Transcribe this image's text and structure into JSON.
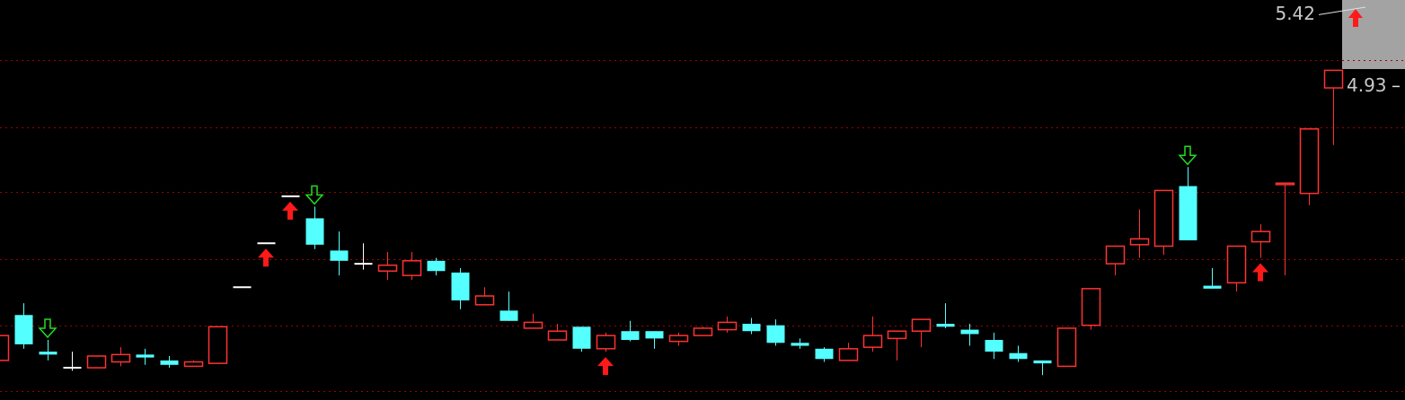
{
  "chart_data": {
    "type": "candlestick",
    "ylim": [
      2.79,
      5.52
    ],
    "gridlines": [
      5.11,
      4.65,
      4.21,
      3.75,
      3.3,
      2.85
    ],
    "grid": true,
    "up_color": "#ff3232",
    "down_color": "#54ffff",
    "flat_color": "#ffffff",
    "open": [
      3.06,
      3.37,
      3.12,
      3.01,
      3.01,
      3.05,
      3.1,
      3.06,
      3.02,
      3.04,
      3.56,
      3.86,
      4.18,
      4.03,
      3.81,
      3.72,
      3.67,
      3.64,
      3.74,
      3.66,
      3.44,
      3.4,
      3.28,
      3.2,
      3.29,
      3.14,
      3.26,
      3.26,
      3.19,
      3.23,
      3.27,
      3.31,
      3.3,
      3.18,
      3.14,
      3.06,
      3.15,
      3.21,
      3.26,
      3.31,
      3.27,
      3.2,
      3.11,
      3.06,
      3.02,
      3.3,
      3.72,
      3.85,
      3.84,
      4.25,
      3.57,
      3.59,
      3.87,
      4.26,
      4.2,
      4.92
    ],
    "high": [
      3.23,
      3.45,
      3.2,
      3.12,
      3.09,
      3.15,
      3.14,
      3.09,
      3.06,
      3.29,
      3.56,
      3.86,
      4.18,
      4.11,
      3.94,
      3.86,
      3.8,
      3.8,
      3.76,
      3.69,
      3.56,
      3.53,
      3.38,
      3.31,
      3.29,
      3.25,
      3.33,
      3.26,
      3.25,
      3.29,
      3.36,
      3.35,
      3.34,
      3.21,
      3.15,
      3.18,
      3.36,
      3.26,
      3.34,
      3.45,
      3.31,
      3.25,
      3.16,
      3.06,
      3.28,
      3.55,
      3.84,
      4.09,
      4.22,
      4.38,
      3.69,
      3.84,
      3.99,
      4.27,
      4.64,
      5.04
    ],
    "low": [
      3.06,
      3.14,
      3.06,
      2.99,
      3.01,
      3.02,
      3.03,
      3.01,
      3.02,
      3.04,
      3.56,
      3.86,
      4.18,
      3.82,
      3.64,
      3.68,
      3.61,
      3.61,
      3.64,
      3.41,
      3.44,
      3.33,
      3.28,
      3.2,
      3.12,
      3.12,
      3.19,
      3.14,
      3.16,
      3.23,
      3.25,
      3.24,
      3.16,
      3.14,
      3.05,
      3.06,
      3.12,
      3.06,
      3.15,
      3.28,
      3.16,
      3.07,
      3.05,
      2.96,
      3.02,
      3.27,
      3.64,
      3.76,
      3.78,
      3.88,
      3.55,
      3.53,
      3.76,
      3.64,
      4.12,
      4.53
    ],
    "close": [
      3.23,
      3.17,
      3.1,
      3.01,
      3.09,
      3.1,
      3.08,
      3.03,
      3.05,
      3.29,
      3.56,
      3.86,
      4.18,
      3.85,
      3.74,
      3.72,
      3.71,
      3.74,
      3.67,
      3.47,
      3.5,
      3.33,
      3.32,
      3.26,
      3.14,
      3.23,
      3.2,
      3.21,
      3.23,
      3.28,
      3.32,
      3.26,
      3.18,
      3.16,
      3.07,
      3.14,
      3.23,
      3.26,
      3.34,
      3.29,
      3.24,
      3.12,
      3.07,
      3.04,
      3.28,
      3.55,
      3.84,
      3.89,
      4.22,
      3.88,
      3.55,
      3.84,
      3.94,
      4.27,
      4.64,
      5.04
    ],
    "buy_signals": [
      11,
      12,
      25,
      52
    ],
    "sell_signals": [
      2,
      13,
      49
    ],
    "price_labels": [
      {
        "value": 5.42,
        "label": "5.42"
      },
      {
        "value": 4.93,
        "label": "4.93"
      }
    ]
  }
}
